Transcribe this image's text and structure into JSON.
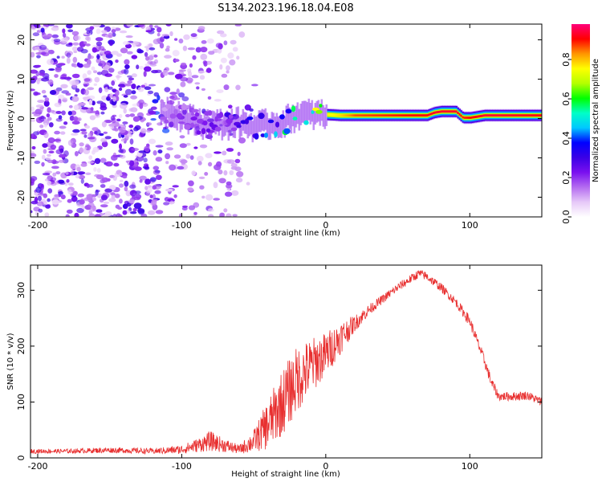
{
  "title": "S134.2023.196.18.04.E08",
  "chart_data": [
    {
      "type": "heatmap",
      "xlabel": "Height of straight line (km)",
      "ylabel": "Frequency (Hz)",
      "xlim": [
        -205,
        150
      ],
      "ylim": [
        -25,
        24
      ],
      "xticks": [
        -200,
        -100,
        0,
        100
      ],
      "yticks": [
        -20,
        -10,
        0,
        10,
        20
      ],
      "grid": false,
      "colorbar": {
        "label": "Normalized spectral amplitude",
        "range": [
          0.0,
          0.98
        ],
        "ticks": [
          0.0,
          0.2,
          0.4,
          0.6,
          0.8
        ],
        "colormap": [
          "#ffffff",
          "#e6c8f8",
          "#b46cf0",
          "#7a10ef",
          "#3a00e6",
          "#0000ff",
          "#00c8ff",
          "#00ffc8",
          "#00ff00",
          "#b4ff00",
          "#ffff00",
          "#ff9600",
          "#ff0000",
          "#ff007a"
        ]
      },
      "ridge": {
        "description_points_x": [
          -110,
          -100,
          -90,
          -80,
          -70,
          -60,
          -50,
          -40,
          -30,
          -20,
          -10,
          0,
          10,
          20,
          40,
          60,
          70,
          75,
          80,
          90,
          95,
          100,
          110,
          120,
          150
        ],
        "frequency_y": [
          2,
          0.5,
          -1,
          -1.5,
          -1.5,
          -1,
          -2,
          -1.5,
          -1,
          1,
          1,
          1,
          0.8,
          0.8,
          0.8,
          0.8,
          0.8,
          1.5,
          1.8,
          1.8,
          0.2,
          0.2,
          0.8,
          0.8,
          0.8
        ],
        "amplitude": [
          0.15,
          0.18,
          0.2,
          0.22,
          0.25,
          0.3,
          0.35,
          0.4,
          0.5,
          0.55,
          0.6,
          0.75,
          0.8,
          0.88,
          0.9,
          0.92,
          0.93,
          0.95,
          0.95,
          0.95,
          0.9,
          0.92,
          0.95,
          0.95,
          0.93
        ]
      }
    },
    {
      "type": "line",
      "xlabel": "Height of straight line (km)",
      "ylabel": "SNR (10 * v/v)",
      "xlim": [
        -205,
        150
      ],
      "ylim": [
        0,
        345
      ],
      "xticks": [
        -200,
        -100,
        0,
        100
      ],
      "yticks": [
        0,
        100,
        200,
        300
      ],
      "grid": false,
      "color": "#e83030",
      "envelope": {
        "x": [
          -205,
          -180,
          -150,
          -120,
          -100,
          -90,
          -80,
          -70,
          -60,
          -50,
          -40,
          -30,
          -20,
          -10,
          0,
          10,
          20,
          30,
          40,
          50,
          60,
          65,
          70,
          80,
          90,
          100,
          110,
          115,
          120,
          130,
          140,
          150
        ],
        "y": [
          12,
          12,
          14,
          12,
          15,
          22,
          30,
          22,
          15,
          30,
          60,
          100,
          140,
          165,
          185,
          215,
          240,
          265,
          285,
          305,
          322,
          330,
          325,
          305,
          280,
          245,
          175,
          135,
          110,
          110,
          112,
          100
        ],
        "noise": [
          4,
          4,
          5,
          5,
          8,
          12,
          18,
          12,
          8,
          20,
          45,
          60,
          60,
          50,
          40,
          30,
          15,
          10,
          8,
          8,
          8,
          8,
          8,
          8,
          8,
          10,
          10,
          10,
          8,
          8,
          8,
          8
        ]
      }
    }
  ]
}
